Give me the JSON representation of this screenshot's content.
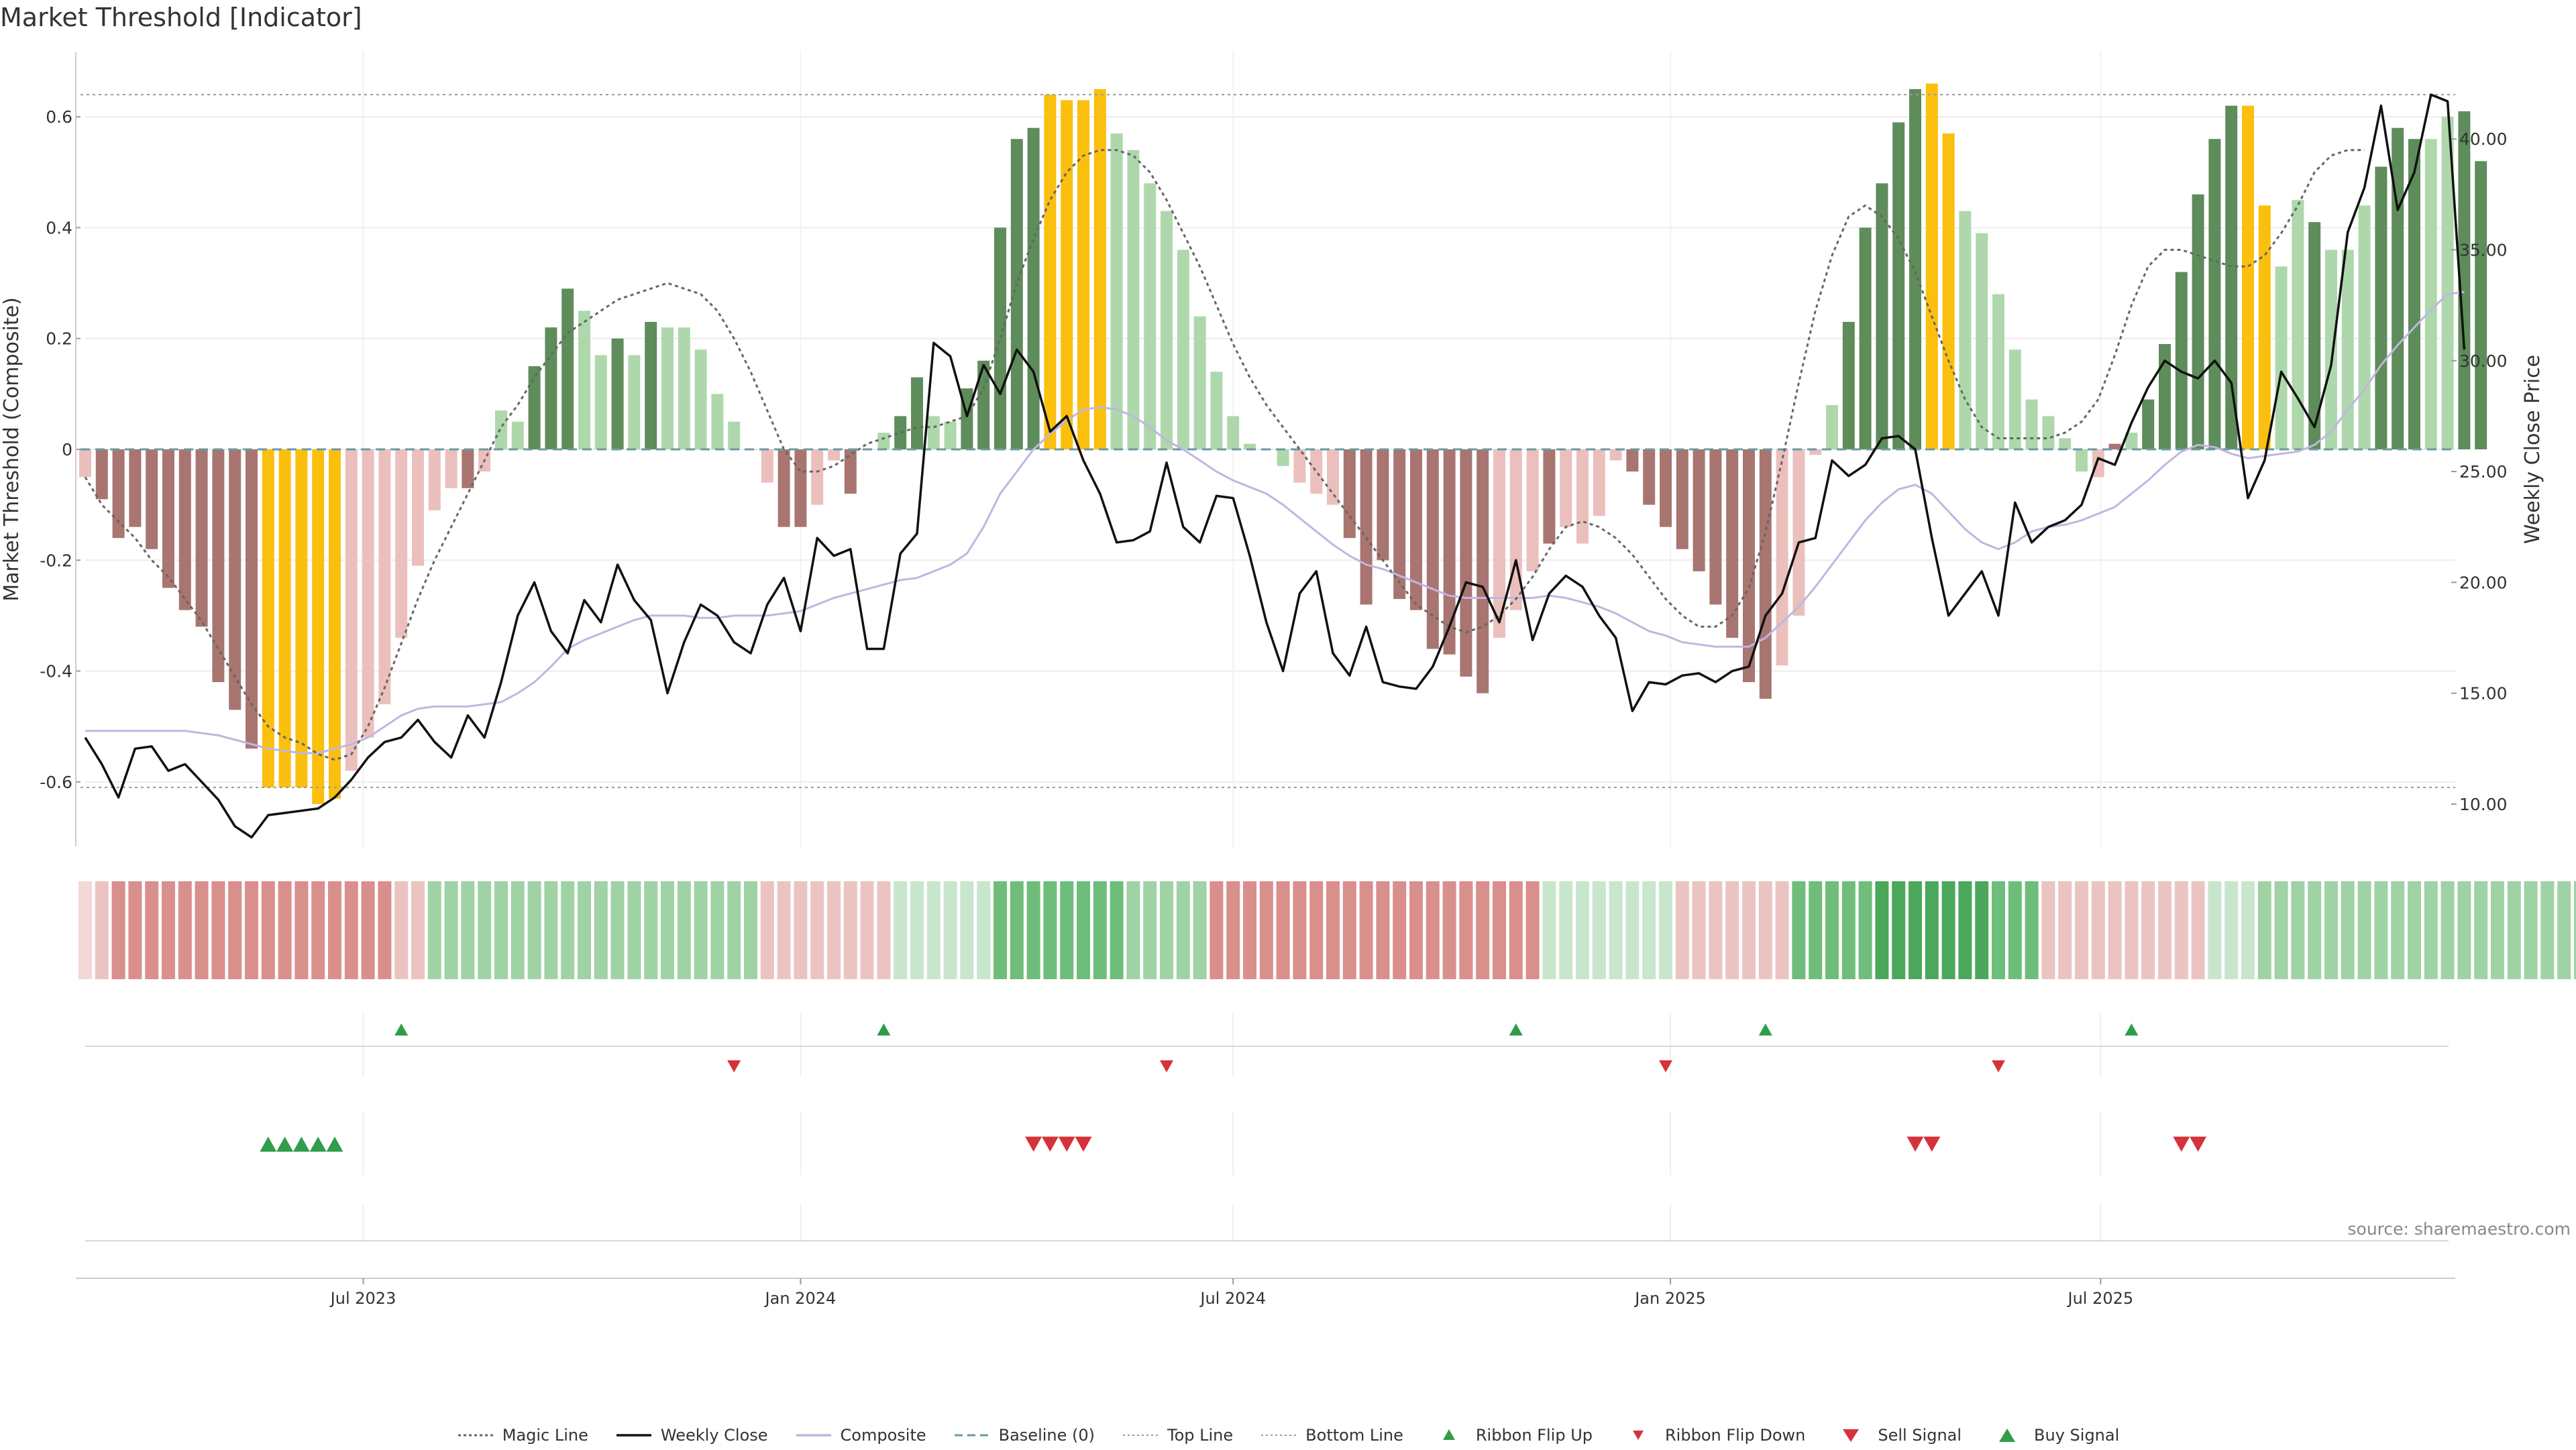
{
  "page": {
    "title": "Market Threshold [Indicator]",
    "source": "source: sharemaestro.com"
  },
  "colors": {
    "bull_strong": "#5e8c5a",
    "bull_light": "#aed8ac",
    "bear_strong": "#a87570",
    "bear_light": "#ebc0bc",
    "extreme": "#fbbf0e",
    "weekly_close": "#111111",
    "composite": "#c0b6e0",
    "magic_line": "#666666",
    "baseline": "#6a9aa5",
    "threshold_line": "#9a9a9a",
    "buy": "#2f9d49",
    "sell": "#d6323c"
  },
  "legend": [
    {
      "label": "Magic Line",
      "icon": "dotted-line"
    },
    {
      "label": "Weekly Close",
      "icon": "solid-line"
    },
    {
      "label": "Composite",
      "icon": "lavender-line"
    },
    {
      "label": "Baseline (0)",
      "icon": "dashed-line"
    },
    {
      "label": "Top Line",
      "icon": "fine-dotted-line"
    },
    {
      "label": "Bottom Line",
      "icon": "fine-dotted-line"
    },
    {
      "label": "Ribbon Flip Up",
      "icon": "up-triangle"
    },
    {
      "label": "Ribbon Flip Down",
      "icon": "down-triangle"
    },
    {
      "label": "Sell Signal",
      "icon": "big-down-triangle"
    },
    {
      "label": "Buy Signal",
      "icon": "big-up-triangle"
    }
  ],
  "chart_data": {
    "type": "bar",
    "frequency": "weekly",
    "first_week": "2023-03-06",
    "left_axis": {
      "label": "Market Threshold (Composite)",
      "range": [
        -0.72,
        0.72
      ],
      "ticks": [
        "0.6",
        "0.4",
        "0.2",
        "0",
        "-0.2",
        "-0.4",
        "-0.6"
      ]
    },
    "right_axis": {
      "label": "Weekly Close Price",
      "range": [
        8.0,
        44.0
      ],
      "ticks": [
        "40.00",
        "35.00",
        "30.00",
        "25.00",
        "20.00",
        "15.00",
        "10.00"
      ]
    },
    "x_ticks": [
      {
        "date": "2023-07-01",
        "label": "Jul 2023"
      },
      {
        "date": "2024-01-01",
        "label": "Jan 2024"
      },
      {
        "date": "2024-07-01",
        "label": "Jul 2024"
      },
      {
        "date": "2025-01-01",
        "label": "Jan 2025"
      },
      {
        "date": "2025-07-01",
        "label": "Jul 2025"
      }
    ],
    "top_line": 0.64,
    "bottom_line": -0.61,
    "baseline": 0,
    "composite_bars": [
      -0.05,
      -0.09,
      -0.16,
      -0.14,
      -0.18,
      -0.25,
      -0.29,
      -0.32,
      -0.42,
      -0.47,
      -0.54,
      -0.61,
      -0.61,
      -0.61,
      -0.64,
      -0.63,
      -0.58,
      -0.52,
      -0.46,
      -0.34,
      -0.21,
      -0.11,
      -0.07,
      -0.07,
      -0.04,
      0.07,
      0.05,
      0.15,
      0.22,
      0.29,
      0.25,
      0.17,
      0.2,
      0.17,
      0.23,
      0.22,
      0.22,
      0.18,
      0.1,
      0.05,
      0.0,
      -0.06,
      -0.14,
      -0.14,
      -0.1,
      -0.02,
      -0.08,
      0.0,
      0.03,
      0.06,
      0.13,
      0.06,
      0.05,
      0.11,
      0.16,
      0.4,
      0.56,
      0.58,
      0.64,
      0.63,
      0.63,
      0.65,
      0.57,
      0.54,
      0.48,
      0.43,
      0.36,
      0.24,
      0.14,
      0.06,
      0.01,
      0.0,
      -0.03,
      -0.06,
      -0.08,
      -0.1,
      -0.16,
      -0.28,
      -0.2,
      -0.27,
      -0.29,
      -0.36,
      -0.37,
      -0.41,
      -0.44,
      -0.34,
      -0.29,
      -0.22,
      -0.17,
      -0.14,
      -0.17,
      -0.12,
      -0.02,
      -0.04,
      -0.1,
      -0.14,
      -0.18,
      -0.22,
      -0.28,
      -0.34,
      -0.42,
      -0.45,
      -0.39,
      -0.3,
      -0.01,
      0.08,
      0.23,
      0.4,
      0.48,
      0.59,
      0.65,
      0.66,
      0.57,
      0.43,
      0.39,
      0.28,
      0.18,
      0.09,
      0.06,
      0.02,
      -0.04,
      -0.05,
      0.01,
      0.03,
      0.09,
      0.19,
      0.32,
      0.46,
      0.56,
      0.62,
      0.62,
      0.44,
      0.33,
      0.45,
      0.41,
      0.36,
      0.36,
      0.44,
      0.51,
      0.58,
      0.56,
      0.56,
      0.6,
      0.61,
      0.52
    ],
    "bar_class": [
      "bl",
      "bs",
      "bs",
      "bs",
      "bs",
      "bs",
      "bs",
      "bs",
      "bs",
      "bs",
      "bs",
      "ex",
      "ex",
      "ex",
      "ex",
      "ex",
      "bl",
      "bl",
      "bl",
      "bl",
      "bl",
      "bl",
      "bl",
      "bs",
      "bl",
      "gl",
      "gl",
      "gs",
      "gs",
      "gs",
      "gl",
      "gl",
      "gs",
      "gl",
      "gs",
      "gl",
      "gl",
      "gl",
      "gl",
      "gl",
      "gl",
      "bl",
      "bs",
      "bs",
      "bl",
      "bl",
      "bs",
      "gl",
      "gl",
      "gs",
      "gs",
      "gl",
      "gl",
      "gs",
      "gs",
      "gs",
      "gs",
      "gs",
      "ex",
      "ex",
      "ex",
      "ex",
      "gl",
      "gl",
      "gl",
      "gl",
      "gl",
      "gl",
      "gl",
      "gl",
      "gl",
      "gl",
      "gl",
      "bl",
      "bl",
      "bl",
      "bs",
      "bs",
      "bs",
      "bs",
      "bs",
      "bs",
      "bs",
      "bs",
      "bs",
      "bl",
      "bl",
      "bl",
      "bs",
      "bl",
      "bl",
      "bl",
      "bl",
      "bs",
      "bs",
      "bs",
      "bs",
      "bs",
      "bs",
      "bs",
      "bs",
      "bs",
      "bl",
      "bl",
      "bl",
      "gl",
      "gs",
      "gs",
      "gs",
      "gs",
      "gs",
      "ex",
      "ex",
      "gl",
      "gl",
      "gl",
      "gl",
      "gl",
      "gl",
      "gl",
      "gl",
      "bl",
      "bs",
      "gl",
      "gs",
      "gs",
      "gs",
      "gs",
      "gs",
      "gs",
      "ex",
      "ex",
      "gl",
      "gl",
      "gs",
      "gl",
      "gl",
      "gl",
      "gs",
      "gs",
      "gs",
      "gl",
      "gl",
      "gs",
      "gs",
      "gl"
    ],
    "magic_line": [
      -0.05,
      -0.1,
      -0.13,
      -0.16,
      -0.2,
      -0.23,
      -0.27,
      -0.31,
      -0.36,
      -0.41,
      -0.46,
      -0.5,
      -0.52,
      -0.53,
      -0.55,
      -0.56,
      -0.55,
      -0.5,
      -0.43,
      -0.35,
      -0.27,
      -0.2,
      -0.14,
      -0.08,
      -0.02,
      0.04,
      0.08,
      0.13,
      0.17,
      0.21,
      0.23,
      0.25,
      0.27,
      0.28,
      0.29,
      0.3,
      0.29,
      0.28,
      0.25,
      0.2,
      0.14,
      0.07,
      0.0,
      -0.04,
      -0.04,
      -0.03,
      -0.01,
      0.01,
      0.02,
      0.03,
      0.04,
      0.04,
      0.05,
      0.06,
      0.11,
      0.2,
      0.3,
      0.38,
      0.45,
      0.5,
      0.53,
      0.54,
      0.54,
      0.53,
      0.5,
      0.45,
      0.39,
      0.33,
      0.26,
      0.19,
      0.13,
      0.08,
      0.04,
      0.0,
      -0.04,
      -0.08,
      -0.12,
      -0.16,
      -0.2,
      -0.24,
      -0.28,
      -0.3,
      -0.32,
      -0.33,
      -0.32,
      -0.3,
      -0.27,
      -0.23,
      -0.18,
      -0.14,
      -0.13,
      -0.14,
      -0.16,
      -0.19,
      -0.23,
      -0.27,
      -0.3,
      -0.32,
      -0.32,
      -0.3,
      -0.25,
      -0.15,
      -0.02,
      0.12,
      0.25,
      0.35,
      0.42,
      0.44,
      0.42,
      0.38,
      0.32,
      0.24,
      0.16,
      0.09,
      0.04,
      0.02,
      0.02,
      0.02,
      0.02,
      0.03,
      0.05,
      0.09,
      0.17,
      0.26,
      0.33,
      0.36,
      0.36,
      0.35,
      0.34,
      0.33,
      0.33,
      0.35,
      0.39,
      0.44,
      0.5,
      0.53,
      0.54,
      0.54
    ],
    "weekly_close": [
      13.0,
      11.8,
      10.3,
      12.5,
      12.6,
      11.5,
      11.8,
      11.0,
      10.2,
      9.0,
      8.5,
      9.5,
      9.6,
      9.7,
      9.8,
      10.3,
      11.1,
      12.1,
      12.8,
      13.0,
      13.8,
      12.8,
      12.1,
      14.0,
      13.0,
      15.5,
      18.5,
      20.0,
      17.8,
      16.8,
      19.2,
      18.2,
      20.8,
      19.2,
      18.3,
      15.0,
      17.3,
      19.0,
      18.5,
      17.3,
      16.8,
      19.0,
      20.2,
      17.8,
      22.0,
      21.2,
      21.5,
      17.0,
      17.0,
      21.3,
      22.2,
      30.8,
      30.2,
      27.5,
      29.8,
      28.5,
      30.5,
      29.5,
      26.8,
      27.5,
      25.5,
      24.0,
      21.8,
      21.9,
      22.3,
      25.4,
      22.5,
      21.8,
      23.9,
      23.8,
      21.2,
      18.2,
      16.0,
      19.5,
      20.5,
      16.8,
      15.8,
      18.0,
      15.5,
      15.3,
      15.2,
      16.2,
      18.0,
      20.0,
      19.8,
      18.2,
      21.0,
      17.4,
      19.5,
      20.3,
      19.8,
      18.5,
      17.5,
      14.2,
      15.5,
      15.4,
      15.8,
      15.9,
      15.5,
      16.0,
      16.2,
      18.5,
      19.5,
      21.8,
      22.0,
      25.5,
      24.8,
      25.3,
      26.5,
      26.6,
      26.0,
      22.0,
      18.5,
      19.5,
      20.5,
      18.5,
      23.6,
      21.8,
      22.5,
      22.8,
      23.5,
      25.6,
      25.3,
      27.2,
      28.8,
      30.0,
      29.5,
      29.2,
      30.0,
      29.0,
      23.8,
      25.5,
      29.5,
      28.3,
      27.0,
      29.8,
      35.8,
      37.8,
      41.5,
      36.8,
      38.5,
      42.0,
      41.7,
      30.5
    ],
    "composite_line": [
      13.3,
      13.3,
      13.3,
      13.3,
      13.3,
      13.3,
      13.3,
      13.2,
      13.1,
      12.9,
      12.7,
      12.5,
      12.4,
      12.3,
      12.3,
      12.5,
      12.7,
      13.0,
      13.5,
      14.0,
      14.3,
      14.4,
      14.4,
      14.4,
      14.5,
      14.6,
      15.0,
      15.5,
      16.2,
      17.0,
      17.4,
      17.7,
      18.0,
      18.3,
      18.5,
      18.5,
      18.5,
      18.4,
      18.4,
      18.5,
      18.5,
      18.5,
      18.6,
      18.7,
      19.0,
      19.3,
      19.5,
      19.7,
      19.9,
      20.1,
      20.2,
      20.5,
      20.8,
      21.3,
      22.5,
      24.0,
      25.0,
      26.0,
      26.7,
      27.3,
      27.8,
      27.9,
      27.8,
      27.5,
      27.0,
      26.4,
      26.0,
      25.5,
      25.0,
      24.6,
      24.3,
      24.0,
      23.5,
      22.9,
      22.3,
      21.7,
      21.2,
      20.8,
      20.6,
      20.3,
      20.0,
      19.7,
      19.4,
      19.3,
      19.3,
      19.3,
      19.3,
      19.3,
      19.4,
      19.3,
      19.1,
      18.9,
      18.6,
      18.2,
      17.8,
      17.6,
      17.3,
      17.2,
      17.1,
      17.1,
      17.1,
      17.5,
      18.2,
      18.9,
      19.8,
      20.8,
      21.8,
      22.8,
      23.6,
      24.2,
      24.4,
      24.0,
      23.2,
      22.4,
      21.8,
      21.5,
      21.8,
      22.3,
      22.5,
      22.6,
      22.8,
      23.1,
      23.4,
      24.0,
      24.6,
      25.3,
      25.9,
      26.2,
      26.1,
      25.8,
      25.6,
      25.7,
      25.8,
      25.9,
      26.2,
      26.8,
      27.8,
      28.7,
      29.8,
      30.7,
      31.5,
      32.3,
      33.0,
      33.1
    ],
    "ribbon_levels": [
      0,
      -1,
      -2,
      -2,
      -2,
      -2,
      -2,
      -2,
      -2,
      -2,
      -2,
      -2,
      -2,
      -2,
      -2,
      -2,
      -2,
      -2,
      -2,
      -1,
      -1,
      2,
      2,
      2,
      2,
      2,
      2,
      2,
      2,
      2,
      2,
      2,
      2,
      2,
      2,
      2,
      2,
      2,
      2,
      2,
      2,
      -1,
      -1,
      -1,
      -1,
      -1,
      -1,
      -1,
      -1,
      1,
      1,
      1,
      1,
      1,
      1,
      3,
      3,
      3,
      3,
      3,
      3,
      3,
      3,
      2,
      2,
      2,
      2,
      2,
      -2,
      -2,
      -2,
      -2,
      -2,
      -2,
      -2,
      -2,
      -2,
      -2,
      -2,
      -2,
      -2,
      -2,
      -2,
      -2,
      -2,
      -2,
      -2,
      -2,
      1,
      1,
      1,
      1,
      1,
      1,
      1,
      1,
      -1,
      -1,
      -1,
      -1,
      -1,
      -1,
      -1,
      3,
      3,
      3,
      3,
      3,
      4,
      4,
      4,
      4,
      4,
      4,
      4,
      3,
      3,
      3,
      -1,
      -1,
      -1,
      -1,
      -1,
      -1,
      -1,
      -1,
      -1,
      -1,
      1,
      1,
      1,
      2,
      2,
      2,
      2,
      2,
      2,
      2,
      2,
      2,
      2,
      2,
      2,
      2,
      2,
      2,
      2,
      2,
      2,
      2,
      2
    ],
    "ribbon_flip_up_weeks": [
      19,
      48,
      86,
      101,
      123
    ],
    "ribbon_flip_down_weeks": [
      39,
      65,
      95,
      115
    ],
    "buy_signal_weeks": [
      11,
      12,
      13,
      14,
      15
    ],
    "sell_signal_weeks": [
      57,
      58,
      59,
      60,
      110,
      111,
      126,
      127
    ]
  }
}
